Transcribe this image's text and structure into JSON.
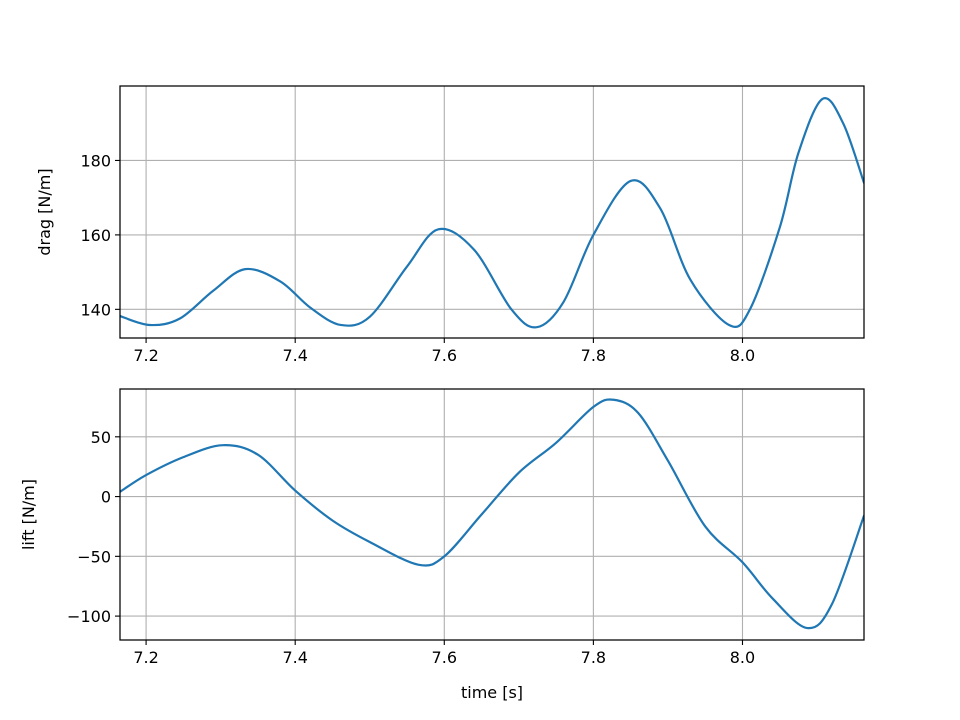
{
  "chart_data": [
    {
      "type": "line",
      "name": "drag-chart",
      "xlabel": "",
      "ylabel": "drag [N/m]",
      "xlim": [
        7.165,
        8.163
      ],
      "ylim": [
        132.3,
        200.0
      ],
      "xticks": [
        7.2,
        7.4,
        7.6,
        7.8,
        8.0
      ],
      "xtick_labels": [
        "7.2",
        "7.4",
        "7.6",
        "7.8",
        "8.0"
      ],
      "yticks": [
        140,
        160,
        180
      ],
      "ytick_labels": [
        "140",
        "160",
        "180"
      ],
      "grid": true,
      "color": "#1f77b4",
      "x": [
        7.165,
        7.205,
        7.245,
        7.29,
        7.333,
        7.38,
        7.42,
        7.461,
        7.5,
        7.55,
        7.592,
        7.64,
        7.69,
        7.724,
        7.76,
        7.8,
        7.85,
        7.89,
        7.93,
        7.982,
        8.01,
        8.05,
        8.075,
        8.107,
        8.135,
        8.163
      ],
      "y": [
        138.2,
        135.8,
        137.5,
        145.0,
        150.8,
        147.5,
        140.5,
        135.8,
        138.0,
        151.5,
        161.5,
        156.0,
        140.0,
        135.2,
        142.0,
        160.0,
        174.5,
        167.0,
        148.0,
        135.8,
        140.0,
        162.0,
        182.0,
        196.5,
        190.0,
        174.0
      ]
    },
    {
      "type": "line",
      "name": "lift-chart",
      "xlabel": "time [s]",
      "ylabel": "lift [N/m]",
      "xlim": [
        7.165,
        8.163
      ],
      "ylim": [
        -120.0,
        90.0
      ],
      "xticks": [
        7.2,
        7.4,
        7.6,
        7.8,
        8.0
      ],
      "xtick_labels": [
        "7.2",
        "7.4",
        "7.6",
        "7.8",
        "8.0"
      ],
      "yticks": [
        -100,
        -50,
        0,
        50
      ],
      "ytick_labels": [
        "−100",
        "−50",
        "0",
        "50"
      ],
      "grid": true,
      "color": "#1f77b4",
      "x": [
        7.165,
        7.2,
        7.25,
        7.303,
        7.35,
        7.4,
        7.45,
        7.5,
        7.565,
        7.6,
        7.65,
        7.7,
        7.75,
        7.8,
        7.827,
        7.86,
        7.9,
        7.95,
        8.0,
        8.04,
        8.087,
        8.12,
        8.163
      ],
      "y": [
        4.0,
        18.0,
        33.0,
        43.0,
        35.0,
        5.0,
        -20.0,
        -38.0,
        -57.0,
        -50.0,
        -15.0,
        20.0,
        45.0,
        75.0,
        81.0,
        70.0,
        30.0,
        -25.0,
        -55.0,
        -85.0,
        -110.0,
        -90.0,
        -16.0
      ]
    }
  ]
}
